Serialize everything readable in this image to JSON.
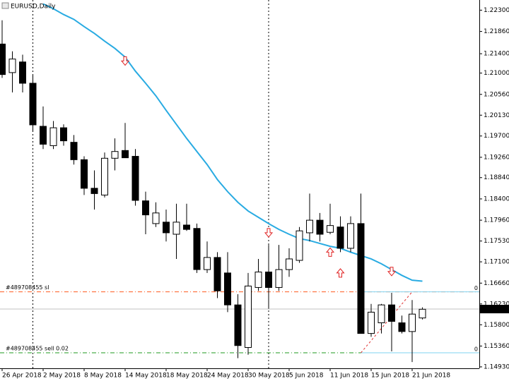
{
  "chart_data": {
    "type": "candlestick",
    "title": "EURUSD,Daily",
    "categories": [
      "26 Apr 2018",
      null,
      null,
      null,
      "2 May 2018",
      null,
      null,
      null,
      "8 May 2018",
      null,
      null,
      null,
      "14 May 2018",
      null,
      null,
      null,
      "18 May 2018",
      null,
      null,
      null,
      "24 May 2018",
      null,
      null,
      null,
      "30 May 2018",
      null,
      null,
      null,
      "5 Jun 2018",
      null,
      null,
      null,
      "11 Jun 2018",
      null,
      null,
      null,
      "15 Jun 2018",
      null,
      null,
      null,
      "21 Jun 2018",
      null
    ],
    "open": [
      1.216,
      1.2101,
      1.2123,
      1.2079,
      1.199,
      1.195,
      1.1987,
      1.1957,
      1.1921,
      1.1862,
      1.1848,
      1.1924,
      1.194,
      1.1928,
      1.1836,
      1.1789,
      1.1792,
      1.1767,
      1.1786,
      1.1779,
      1.1694,
      1.1719,
      1.1687,
      1.1621,
      1.1533,
      1.1657,
      1.1689,
      1.1657,
      1.1694,
      1.1713,
      1.177,
      1.1796,
      1.1771,
      1.1782,
      1.1738,
      1.1789,
      1.1562,
      1.1584,
      1.1621,
      1.1584,
      1.1566,
      1.1594
    ],
    "high": [
      1.2209,
      1.2145,
      1.2138,
      1.2097,
      1.2031,
      1.2001,
      1.1994,
      1.1972,
      1.1928,
      1.1899,
      1.1936,
      1.1965,
      1.1997,
      1.1943,
      1.1855,
      1.1833,
      1.1818,
      1.183,
      1.183,
      1.1789,
      1.1752,
      1.173,
      1.173,
      1.1643,
      1.1687,
      1.1716,
      1.1745,
      1.1745,
      1.1738,
      1.1782,
      1.1851,
      1.1811,
      1.183,
      1.1804,
      1.1804,
      1.1851,
      1.1623,
      1.1623,
      1.1646,
      1.1599,
      1.1631,
      1.1616
    ],
    "low": [
      1.209,
      1.206,
      1.206,
      1.1979,
      1.1943,
      1.1943,
      1.195,
      1.1911,
      1.1848,
      1.1818,
      1.1843,
      1.1899,
      1.1925,
      1.1826,
      1.1767,
      1.1782,
      1.1752,
      1.1716,
      1.1774,
      1.1687,
      1.1687,
      1.1635,
      1.1606,
      1.1511,
      1.1518,
      1.165,
      1.1613,
      1.165,
      1.1679,
      1.1708,
      1.1752,
      1.1752,
      1.1767,
      1.173,
      1.173,
      1.1562,
      1.1555,
      1.1562,
      1.1525,
      1.1562,
      1.1503,
      1.1591
    ],
    "close": [
      1.2097,
      1.2129,
      1.2079,
      1.1993,
      1.1953,
      1.1987,
      1.196,
      1.1921,
      1.1862,
      1.1851,
      1.1924,
      1.1938,
      1.1925,
      1.1837,
      1.1807,
      1.1811,
      1.177,
      1.1792,
      1.1777,
      1.1694,
      1.1719,
      1.165,
      1.1621,
      1.1537,
      1.166,
      1.1689,
      1.1657,
      1.1694,
      1.1716,
      1.1774,
      1.1796,
      1.1767,
      1.1785,
      1.1738,
      1.1789,
      1.1562,
      1.1606,
      1.1621,
      1.1587,
      1.1566,
      1.1602,
      1.1612
    ],
    "up_color": "#ffffff",
    "down_color": "#000000",
    "ma": {
      "color": "#29abe2",
      "values": [
        null,
        null,
        null,
        null,
        1.2243,
        1.2233,
        1.2221,
        1.2211,
        1.2196,
        1.2182,
        1.2166,
        1.2151,
        1.2133,
        1.2104,
        1.2079,
        1.2053,
        1.2023,
        1.1994,
        1.1965,
        1.1938,
        1.1911,
        1.188,
        1.1855,
        1.1833,
        1.1815,
        1.1802,
        1.1789,
        1.1777,
        1.1767,
        1.1758,
        1.1754,
        1.1748,
        1.1742,
        1.1738,
        1.173,
        1.1723,
        1.1716,
        1.1706,
        1.1694,
        1.1682,
        1.1672,
        1.167
      ]
    },
    "ylim": [
      1.149,
      1.2251
    ],
    "yticks": [
      {
        "value": 1.223,
        "label": "1.22300"
      },
      {
        "value": 1.2186,
        "label": "1.21860"
      },
      {
        "value": 1.214,
        "label": "1.21400"
      },
      {
        "value": 1.21,
        "label": "1.21000"
      },
      {
        "value": 1.2056,
        "label": "1.20560"
      },
      {
        "value": 1.2013,
        "label": "1.20130"
      },
      {
        "value": 1.197,
        "label": "1.19700"
      },
      {
        "value": 1.1926,
        "label": "1.19260"
      },
      {
        "value": 1.1884,
        "label": "1.18840"
      },
      {
        "value": 1.184,
        "label": "1.18400"
      },
      {
        "value": 1.1796,
        "label": "1.17960"
      },
      {
        "value": 1.1753,
        "label": "1.17530"
      },
      {
        "value": 1.171,
        "label": "1.17100"
      },
      {
        "value": 1.1666,
        "label": "1.16660"
      },
      {
        "value": 1.1623,
        "label": "1.16230"
      },
      {
        "value": 1.158,
        "label": "1.15800"
      },
      {
        "value": 1.1536,
        "label": "1.15360"
      },
      {
        "value": 1.1493,
        "label": "1.14930"
      }
    ],
    "current_price": {
      "value": 1.16124,
      "label": "1.16124"
    },
    "separators": [
      3,
      26
    ],
    "signals": [
      {
        "index": 12,
        "direction": "down",
        "price": 1.2125
      },
      {
        "index": 26,
        "direction": "down",
        "price": 1.177
      },
      {
        "index": 32,
        "direction": "up",
        "price": 1.173
      },
      {
        "index": 33,
        "direction": "up",
        "price": 1.1687
      },
      {
        "index": 38,
        "direction": "down",
        "price": 1.169
      }
    ],
    "orders": [
      {
        "label": "#489708455 sl",
        "price": 1.1648,
        "color": "#ff5a1f",
        "level_label": "0"
      },
      {
        "label": "#489708455 sell 0.02",
        "price": 1.1522,
        "color": "#1f9a1f",
        "level_label": "0"
      }
    ],
    "order_from_index": 35,
    "trade_line": {
      "from_index": 35,
      "to_index": 40,
      "color": "#e03030"
    }
  }
}
